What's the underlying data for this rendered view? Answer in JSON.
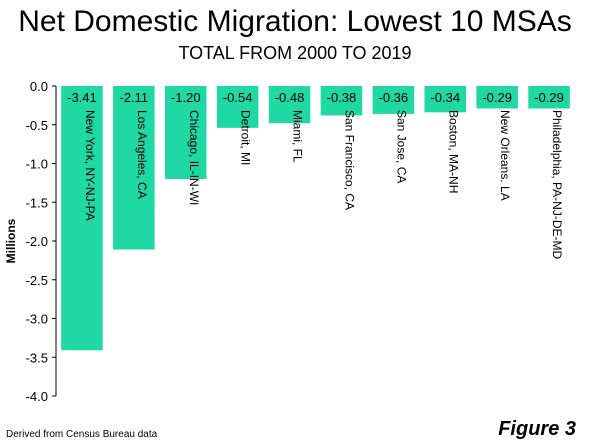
{
  "chart_data": {
    "type": "bar",
    "title": "Net Domestic Migration: Lowest 10 MSAs",
    "subtitle": "TOTAL FROM 2000 TO 2019",
    "ylabel": "Millions",
    "xlabel": "",
    "ylim": [
      -4.0,
      0.0
    ],
    "yticks": [
      0.0,
      -0.5,
      -1.0,
      -1.5,
      -2.0,
      -2.5,
      -3.0,
      -3.5,
      -4.0
    ],
    "ytick_labels": [
      "0.0",
      "-0.5",
      "-1.0",
      "-1.5",
      "-2.0",
      "-2.5",
      "-3.0",
      "-3.5",
      "-4.0"
    ],
    "categories": [
      "New York, NY-NJ-PA",
      "Los Angeles, CA",
      "Chicago, IL-IN-WI",
      "Detroit,  MI",
      "Miami, FL",
      "San Francisco,  CA",
      "San Jose,  CA",
      "Boston, MA-NH",
      "New Orleans.  LA",
      "Philadelphia, PA-NJ-DE-MD"
    ],
    "values": [
      -3.41,
      -2.11,
      -1.2,
      -0.54,
      -0.48,
      -0.38,
      -0.36,
      -0.34,
      -0.29,
      -0.29
    ],
    "data_labels": [
      "-3.41",
      "-2.11",
      "-1.20",
      "-0.54",
      "-0.48",
      "-0.38",
      "-0.36",
      "-0.34",
      "-0.29",
      "-0.29"
    ],
    "bar_color": "#1fd8a4",
    "grid": false,
    "legend": "none"
  },
  "footnote": "Derived from Census Bureau data",
  "figure_label": "Figure 3"
}
